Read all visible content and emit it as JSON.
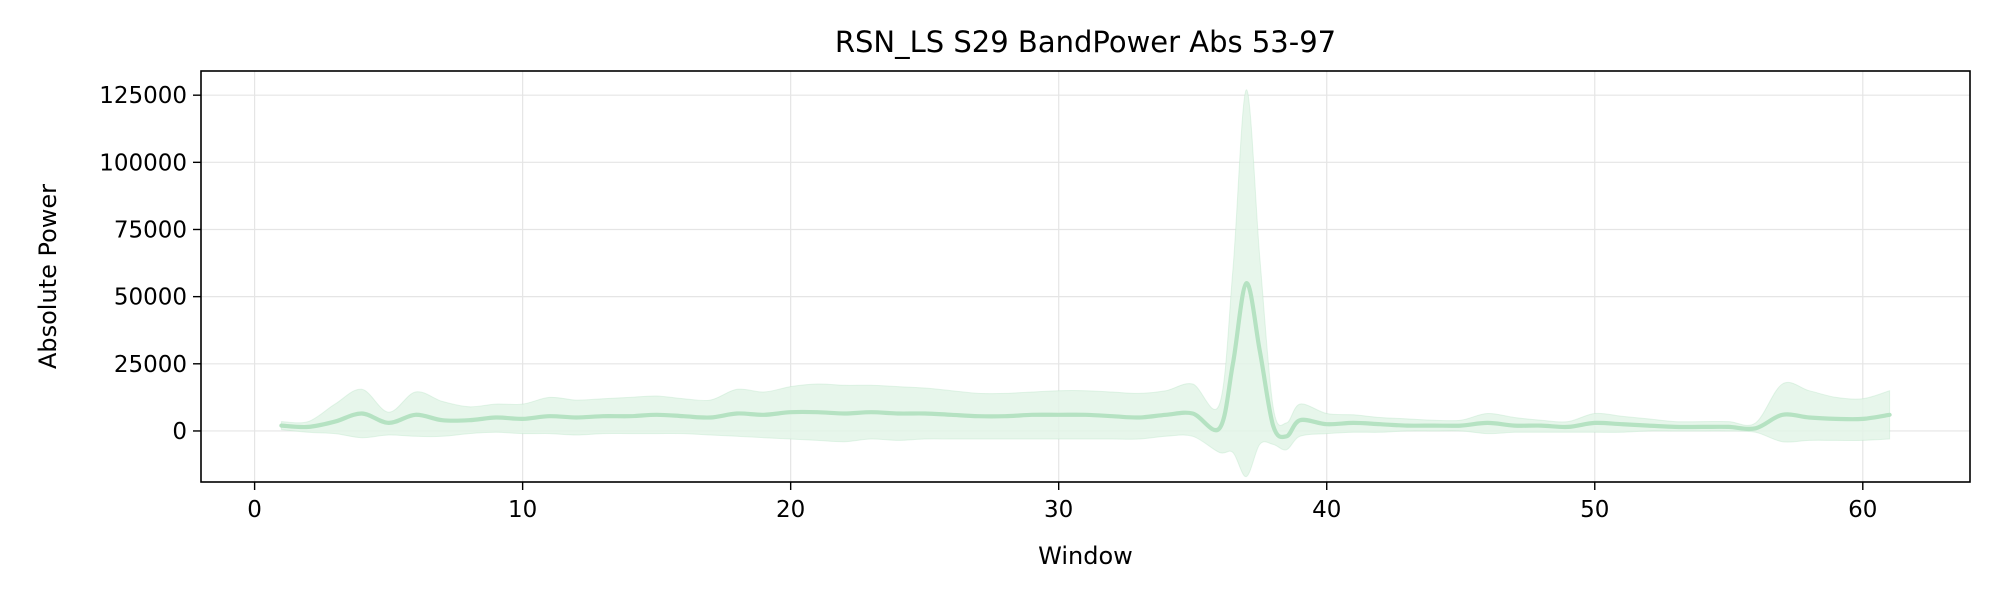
{
  "chart_data": {
    "type": "line",
    "title": "RSN_LS S29 BandPower Abs 53-97",
    "xlabel": "Window",
    "ylabel": "Absolute Power",
    "xlim": [
      -2,
      64
    ],
    "ylim": [
      -19000,
      134000
    ],
    "xticks": [
      0,
      10,
      20,
      30,
      40,
      50,
      60
    ],
    "yticks": [
      0,
      25000,
      50000,
      75000,
      100000,
      125000
    ],
    "grid": true,
    "legend": "none",
    "colors": {
      "line": "#b5e2c2",
      "band": "#e3f4e8",
      "grid": "#e5e5e5"
    },
    "series": [
      {
        "x": [
          1,
          2,
          3,
          4,
          5,
          6,
          7,
          8,
          9,
          10,
          11,
          12,
          13,
          14,
          15,
          16,
          17,
          18,
          19,
          20,
          21,
          22,
          23,
          24,
          25,
          26,
          27,
          28,
          29,
          30,
          31,
          32,
          33,
          34,
          35,
          36,
          36.5,
          37,
          37.5,
          38,
          38.5,
          39,
          40,
          41,
          42,
          43,
          44,
          45,
          46,
          47,
          48,
          49,
          50,
          51,
          52,
          53,
          54,
          55,
          56,
          57,
          58,
          59,
          60,
          61
        ],
        "mean": [
          2000,
          1500,
          3500,
          6500,
          3000,
          6000,
          4000,
          4000,
          5000,
          4500,
          5500,
          5000,
          5500,
          5500,
          6000,
          5500,
          5000,
          6500,
          6000,
          7000,
          7000,
          6500,
          7000,
          6500,
          6500,
          6000,
          5500,
          5500,
          6000,
          6000,
          6000,
          5500,
          5000,
          6000,
          6500,
          1000,
          25000,
          55000,
          30000,
          2000,
          -2000,
          4000,
          2500,
          3000,
          2500,
          2000,
          2000,
          2000,
          3000,
          2000,
          2000,
          1500,
          3000,
          2500,
          2000,
          1500,
          1500,
          1500,
          1000,
          6000,
          5000,
          4500,
          4500,
          6000
        ],
        "lower": [
          500,
          -500,
          -1000,
          -2500,
          -1500,
          -2000,
          -2000,
          -1000,
          -500,
          -1000,
          -1000,
          -1500,
          -1000,
          -1000,
          -1000,
          -1000,
          -1500,
          -2000,
          -2500,
          -3000,
          -3500,
          -4000,
          -3000,
          -3500,
          -3000,
          -3000,
          -3000,
          -3000,
          -3000,
          -3000,
          -3000,
          -3000,
          -3000,
          -2000,
          -2000,
          -8000,
          -8000,
          -17000,
          -5000,
          -5000,
          -7000,
          -2000,
          -1000,
          -500,
          -500,
          0,
          0,
          0,
          -1000,
          -500,
          -500,
          -500,
          -500,
          -500,
          0,
          0,
          0,
          0,
          -500,
          -4000,
          -3500,
          -3500,
          -3500,
          -3000
        ],
        "upper": [
          3500,
          3500,
          10000,
          15500,
          7000,
          14500,
          11000,
          9000,
          10000,
          10000,
          12500,
          11500,
          12000,
          12500,
          13000,
          12000,
          11500,
          15500,
          14500,
          16500,
          17500,
          17000,
          17000,
          16500,
          16000,
          15000,
          14000,
          14000,
          14500,
          15000,
          15000,
          14500,
          14000,
          15000,
          17500,
          10000,
          60000,
          127000,
          65000,
          9000,
          3000,
          10000,
          6500,
          6000,
          5000,
          4500,
          4000,
          4000,
          6500,
          5000,
          4000,
          3500,
          6500,
          5500,
          4500,
          3500,
          3500,
          3500,
          3000,
          17500,
          15000,
          12500,
          12000,
          15000
        ]
      }
    ]
  }
}
